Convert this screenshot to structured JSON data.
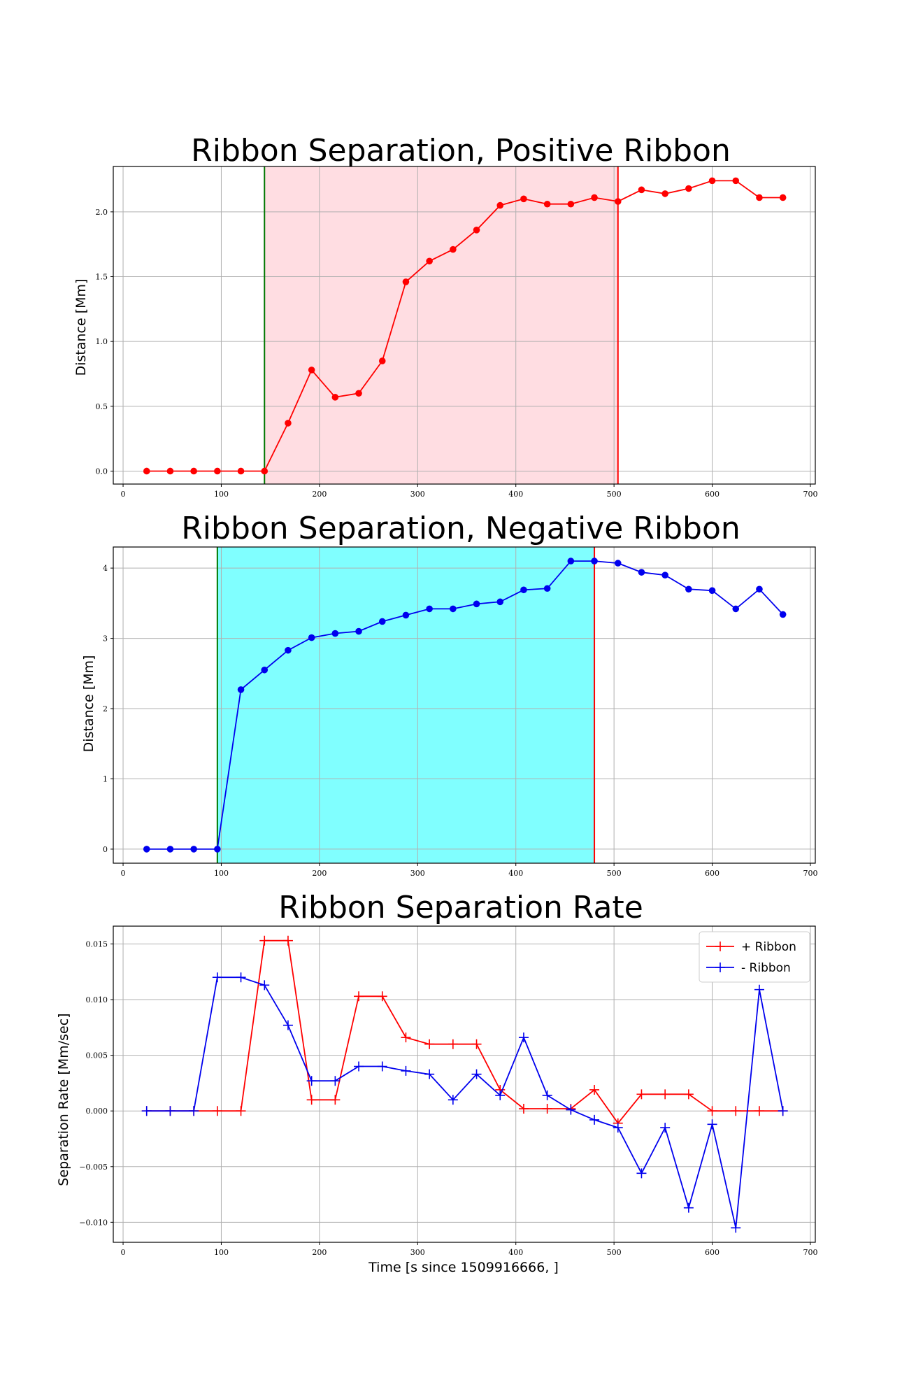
{
  "chart_data": [
    {
      "type": "line",
      "title": "Ribbon Separation, Positive Ribbon",
      "xlabel": "",
      "ylabel": "Distance [Mm]",
      "xlim": [
        -10,
        705
      ],
      "ylim": [
        -0.1,
        2.35
      ],
      "xticks": [
        "0",
        "100",
        "200",
        "300",
        "400",
        "500",
        "600",
        "700"
      ],
      "yticks": [
        "0.0",
        "0.5",
        "1.0",
        "1.5",
        "2.0"
      ],
      "grid": true,
      "shaded_region": {
        "x0": 144,
        "x1": 504,
        "color": "#ffdde2"
      },
      "start_line": {
        "x": 144,
        "color": "#007700"
      },
      "end_line": {
        "x": 504,
        "color": "#ff0000"
      },
      "series": [
        {
          "color": "#ff0000",
          "marker": "circle",
          "x": [
            24,
            48,
            72,
            96,
            120,
            144,
            168,
            192,
            216,
            240,
            264,
            288,
            312,
            336,
            360,
            384,
            408,
            432,
            456,
            480,
            504,
            528,
            552,
            576,
            600,
            624,
            648,
            672
          ],
          "y": [
            0,
            0,
            0,
            0,
            0,
            0,
            0.37,
            0.78,
            0.57,
            0.6,
            0.85,
            1.46,
            1.62,
            1.71,
            1.86,
            2.05,
            2.1,
            2.06,
            2.06,
            2.11,
            2.08,
            2.17,
            2.14,
            2.18,
            2.24,
            2.24,
            2.11,
            2.11
          ]
        }
      ]
    },
    {
      "type": "line",
      "title": "Ribbon Separation, Negative Ribbon",
      "xlabel": "",
      "ylabel": "Distance [Mm]",
      "xlim": [
        -10,
        705
      ],
      "ylim": [
        -0.2,
        4.3
      ],
      "xticks": [
        "0",
        "100",
        "200",
        "300",
        "400",
        "500",
        "600",
        "700"
      ],
      "yticks": [
        "0",
        "1",
        "2",
        "3",
        "4"
      ],
      "grid": true,
      "shaded_region": {
        "x0": 96,
        "x1": 480,
        "color": "#80ffff"
      },
      "start_line": {
        "x": 96,
        "color": "#007700"
      },
      "end_line": {
        "x": 480,
        "color": "#ff0000"
      },
      "series": [
        {
          "color": "#0000ee",
          "marker": "circle",
          "x": [
            24,
            48,
            72,
            96,
            120,
            144,
            168,
            192,
            216,
            240,
            264,
            288,
            312,
            336,
            360,
            384,
            408,
            432,
            456,
            480,
            504,
            528,
            552,
            576,
            600,
            624,
            648,
            672
          ],
          "y": [
            0,
            0,
            0,
            0,
            2.27,
            2.55,
            2.83,
            3.01,
            3.07,
            3.1,
            3.24,
            3.33,
            3.42,
            3.42,
            3.49,
            3.52,
            3.69,
            3.71,
            4.1,
            4.1,
            4.07,
            3.94,
            3.9,
            3.7,
            3.68,
            3.42,
            3.7,
            3.34
          ]
        }
      ]
    },
    {
      "type": "line",
      "title": "Ribbon Separation Rate",
      "xlabel": "Time [s since 1509916666, ]",
      "ylabel": "Separation Rate [Mm/sec]",
      "xlim": [
        -10,
        705
      ],
      "ylim": [
        -0.0118,
        0.0166
      ],
      "xticks": [
        "0",
        "100",
        "200",
        "300",
        "400",
        "500",
        "600",
        "700"
      ],
      "yticks": [
        "−0.010",
        "−0.005",
        "0.000",
        "0.005",
        "0.010",
        "0.015"
      ],
      "grid": true,
      "legend": "top-right",
      "series": [
        {
          "name": "+ Ribbon",
          "color": "#ff0000",
          "marker": "plus",
          "x": [
            24,
            48,
            72,
            96,
            120,
            144,
            168,
            192,
            216,
            240,
            264,
            288,
            312,
            336,
            360,
            384,
            408,
            432,
            456,
            480,
            504,
            528,
            552,
            576,
            600,
            624,
            648,
            672
          ],
          "y": [
            0,
            0,
            0,
            0,
            0,
            0.0153,
            0.0153,
            0.001,
            0.001,
            0.0103,
            0.0103,
            0.0066,
            0.006,
            0.006,
            0.006,
            0.0019,
            0.0002,
            0.0002,
            0.0002,
            0.0019,
            -0.0011,
            0.0015,
            0.0015,
            0.0015,
            0,
            0,
            0,
            0
          ]
        },
        {
          "name": "- Ribbon",
          "color": "#0000ee",
          "marker": "plus",
          "x": [
            24,
            48,
            72,
            96,
            120,
            144,
            168,
            192,
            216,
            240,
            264,
            288,
            312,
            336,
            360,
            384,
            408,
            432,
            456,
            480,
            504,
            528,
            552,
            576,
            600,
            624,
            648,
            672
          ],
          "y": [
            0,
            0,
            0,
            0.012,
            0.012,
            0.0113,
            0.0077,
            0.0027,
            0.0027,
            0.004,
            0.004,
            0.0036,
            0.0033,
            0.001,
            0.0033,
            0.0014,
            0.0066,
            0.0014,
            0.0001,
            -0.0008,
            -0.0015,
            -0.0056,
            -0.0015,
            -0.0087,
            -0.0012,
            -0.0105,
            0.0109,
            0
          ]
        }
      ]
    }
  ]
}
